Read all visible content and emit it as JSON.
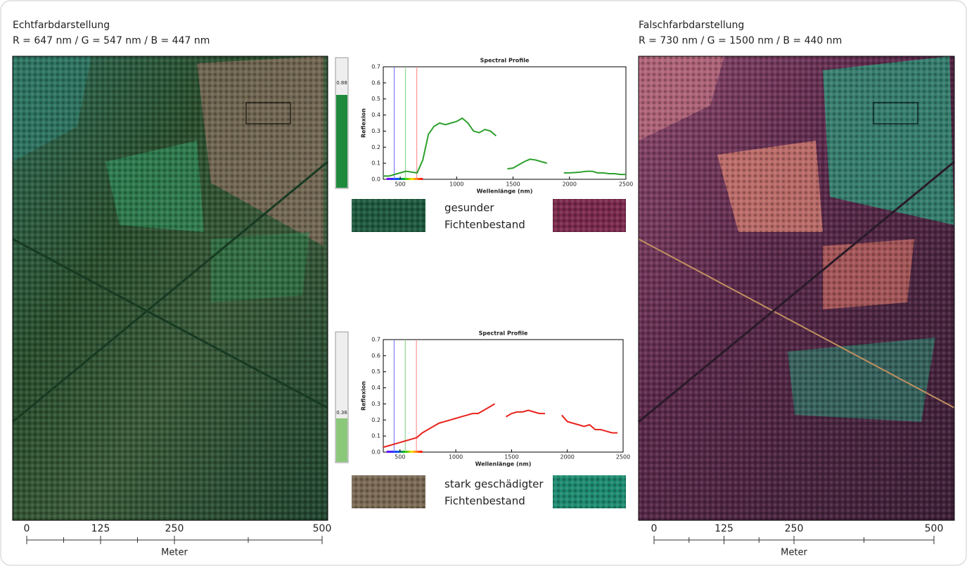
{
  "panels": [
    {
      "title": "Echtfarbdarstellung",
      "subtitle": "R = 647 nm / G = 547 nm / B = 447 nm",
      "scale": {
        "lim": [
          0,
          500
        ],
        "ticks": [
          0,
          125,
          250,
          500
        ],
        "label": "Meter"
      }
    },
    {
      "title": "Falschfarbdarstellung",
      "subtitle": "R = 730 nm / G = 1500 nm / B = 440 nm",
      "scale": {
        "lim": [
          0,
          500
        ],
        "ticks": [
          0,
          125,
          250,
          500
        ],
        "label": "Meter"
      }
    }
  ],
  "sliders": [
    "0.88",
    "0.36"
  ],
  "swatch_labels": [
    [
      "gesunder",
      "Fichtenbestand"
    ],
    [
      "stark geschädigter",
      "Fichtenbestand"
    ]
  ],
  "chart_data": [
    {
      "type": "line",
      "title": "Spectral Profile",
      "x_label": "Wellenlänge (nm)",
      "y_label": "Reflexion",
      "xlim": [
        350,
        2500
      ],
      "xticks": [
        500,
        1000,
        1500,
        2000,
        2500
      ],
      "ylim": [
        0,
        0.7
      ],
      "yticks": [
        {
          "value": 0,
          "label": "0.0"
        },
        0.1,
        0.2,
        0.3,
        0.4,
        0.5,
        0.6,
        0.7
      ],
      "band_lines": [
        {
          "value": 447,
          "color": "#6a6aff"
        },
        {
          "value": 547,
          "color": "#7ccf7c"
        },
        {
          "value": 647,
          "color": "#ff8080"
        }
      ],
      "x": [
        350,
        400,
        450,
        500,
        550,
        600,
        650,
        700,
        750,
        800,
        850,
        900,
        950,
        1000,
        1050,
        1100,
        1150,
        1200,
        1250,
        1300,
        1350,
        1400,
        1450,
        1500,
        1550,
        1600,
        1650,
        1700,
        1750,
        1800,
        1850,
        1900,
        1950,
        2000,
        2050,
        2100,
        2150,
        2200,
        2250,
        2300,
        2350,
        2400,
        2450,
        2500
      ],
      "series": [
        {
          "color": "#2ca02c",
          "values": [
            0.02,
            0.02,
            0.03,
            0.04,
            0.05,
            0.045,
            0.04,
            0.12,
            0.28,
            0.33,
            0.35,
            0.34,
            0.35,
            0.36,
            0.38,
            0.35,
            0.3,
            0.29,
            0.31,
            0.3,
            0.27,
            null,
            0.065,
            0.07,
            0.09,
            0.11,
            0.125,
            0.12,
            0.11,
            0.1,
            null,
            null,
            0.04,
            0.04,
            0.042,
            0.045,
            0.05,
            0.05,
            0.04,
            0.04,
            0.035,
            0.035,
            0.03,
            0.03
          ]
        }
      ]
    },
    {
      "type": "line",
      "title": "Spectral Profile",
      "x_label": "Wellenlänge (nm)",
      "y_label": "Reflexion",
      "xlim": [
        350,
        2500
      ],
      "xticks": [
        500,
        1000,
        1500,
        2000,
        2500
      ],
      "ylim": [
        0,
        0.7
      ],
      "yticks": [
        {
          "value": 0,
          "label": "0.0"
        },
        0.1,
        0.2,
        0.3,
        0.4,
        0.5,
        0.6,
        0.7
      ],
      "band_lines": [
        {
          "value": 447,
          "color": "#6a6aff"
        },
        {
          "value": 547,
          "color": "#7ccf7c"
        },
        {
          "value": 647,
          "color": "#ff8080"
        }
      ],
      "x": [
        350,
        400,
        450,
        500,
        550,
        600,
        650,
        700,
        750,
        800,
        850,
        900,
        950,
        1000,
        1050,
        1100,
        1150,
        1200,
        1250,
        1300,
        1350,
        1400,
        1450,
        1500,
        1550,
        1600,
        1650,
        1700,
        1750,
        1800,
        1850,
        1900,
        1950,
        2000,
        2050,
        2100,
        2150,
        2200,
        2250,
        2300,
        2350,
        2400,
        2450,
        2500
      ],
      "series": [
        {
          "color": "#e8231d",
          "values": [
            0.03,
            0.04,
            0.05,
            0.06,
            0.07,
            0.08,
            0.09,
            0.12,
            0.14,
            0.16,
            0.18,
            0.19,
            0.2,
            0.21,
            0.22,
            0.23,
            0.24,
            0.24,
            0.26,
            0.28,
            0.3,
            null,
            0.22,
            0.24,
            0.25,
            0.25,
            0.26,
            0.25,
            0.24,
            0.24,
            null,
            null,
            0.23,
            0.19,
            0.18,
            0.17,
            0.16,
            0.17,
            0.14,
            0.14,
            0.13,
            0.12,
            0.12,
            null
          ]
        }
      ]
    }
  ]
}
